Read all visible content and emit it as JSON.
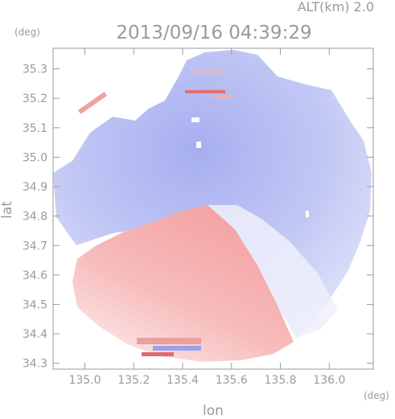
{
  "chart_data": {
    "type": "heatmap",
    "title": "2013/09/16 04:39:29",
    "altitude_label": "ALT(km) 2.0",
    "xlabel": "lon",
    "ylabel": "lat",
    "x_unit": "(deg)",
    "y_unit": "(deg)",
    "xlim": [
      134.87,
      136.18
    ],
    "ylim": [
      34.28,
      35.37
    ],
    "x_ticks": [
      "135.0",
      "135.2",
      "135.4",
      "135.6",
      "135.8",
      "136.0"
    ],
    "x_tick_values": [
      135.0,
      135.2,
      135.4,
      135.6,
      135.8,
      136.0
    ],
    "y_ticks": [
      "34.3",
      "34.4",
      "34.5",
      "34.6",
      "34.7",
      "34.8",
      "34.9",
      "35.0",
      "35.1",
      "35.2",
      "35.3"
    ],
    "y_tick_values": [
      34.3,
      34.4,
      34.5,
      34.6,
      34.7,
      34.8,
      34.9,
      35.0,
      35.1,
      35.2,
      35.3
    ],
    "radar_center": [
      135.55,
      34.78
    ],
    "colors": {
      "approaching": "#8c96ec",
      "receding": "#f28a8a",
      "neutral": "#f2f2f8",
      "axis": "#9a9a9a"
    }
  }
}
